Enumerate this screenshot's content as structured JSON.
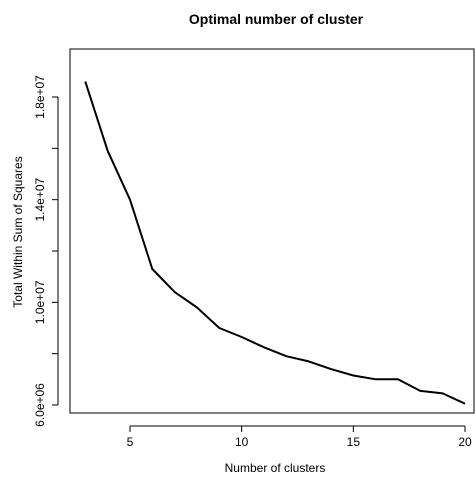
{
  "chart_data": {
    "type": "line",
    "title": "Optimal number of cluster",
    "xlabel": "Number of clusters",
    "ylabel": "Total Within Sum of Squares",
    "xlim": [
      2.5,
      20
    ],
    "ylim": [
      5900000,
      19800000
    ],
    "x_ticks": [
      5,
      10,
      15,
      20
    ],
    "x_tick_labels": [
      "5",
      "10",
      "15",
      "20"
    ],
    "y_ticks": [
      6000000,
      8000000,
      10000000,
      12000000,
      14000000,
      16000000,
      18000000
    ],
    "y_tick_labels": [
      "6.0e+06",
      "",
      "1.0e+07",
      "",
      "1.4e+07",
      "",
      "1.8e+07"
    ],
    "grid": false,
    "legend": "none",
    "line_color": "#000000",
    "series": [
      {
        "x": [
          3,
          4,
          5,
          6,
          7,
          8,
          9,
          10,
          11,
          12,
          13,
          14,
          15,
          16,
          17,
          18,
          19,
          20
        ],
        "values": [
          18600000,
          15900000,
          14000000,
          11300000,
          10400000,
          9800000,
          9000000,
          8650000,
          8250000,
          7900000,
          7700000,
          7400000,
          7150000,
          7000000,
          7000000,
          6550000,
          6450000,
          6050000
        ]
      }
    ]
  }
}
